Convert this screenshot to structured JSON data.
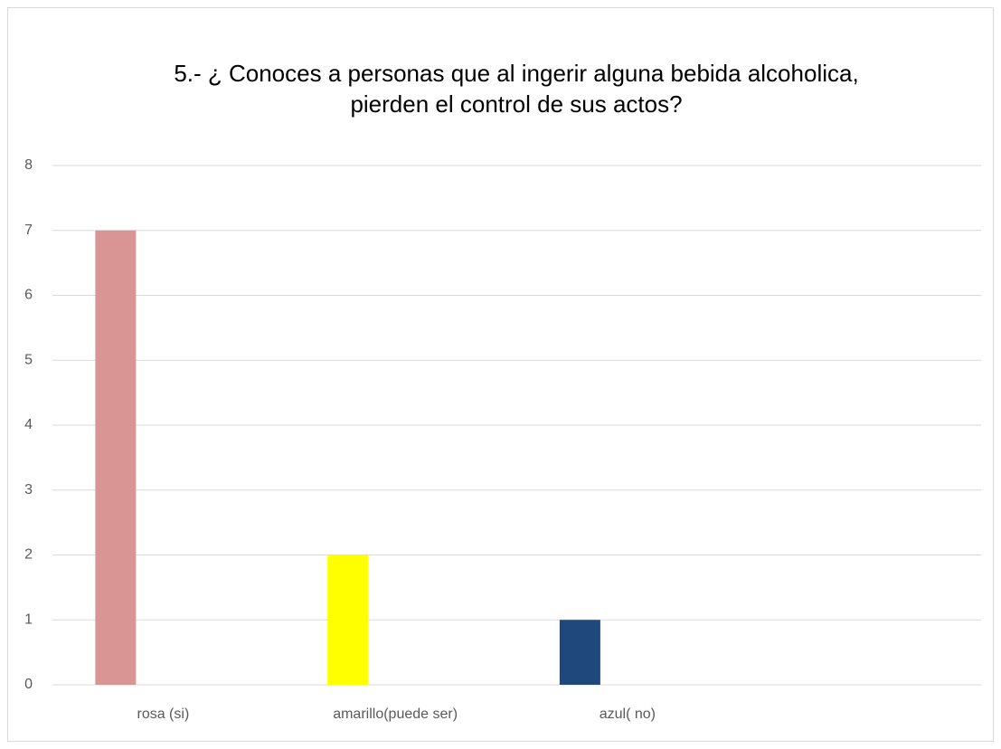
{
  "chart_data": {
    "type": "bar",
    "title": "5.- ¿ Conoces a personas que al ingerir alguna bebida alcoholica, pierden el control de sus actos?",
    "categories": [
      "rosa (si)",
      "amarillo(puede ser)",
      "azul( no)",
      null
    ],
    "values": [
      7,
      2,
      1,
      null
    ],
    "colors": [
      "#d99594",
      "#ffff00",
      "#1f497d",
      null
    ],
    "ylim": [
      0,
      8
    ],
    "yticks": [
      0,
      1,
      2,
      3,
      4,
      5,
      6,
      7,
      8
    ],
    "grid": true
  }
}
